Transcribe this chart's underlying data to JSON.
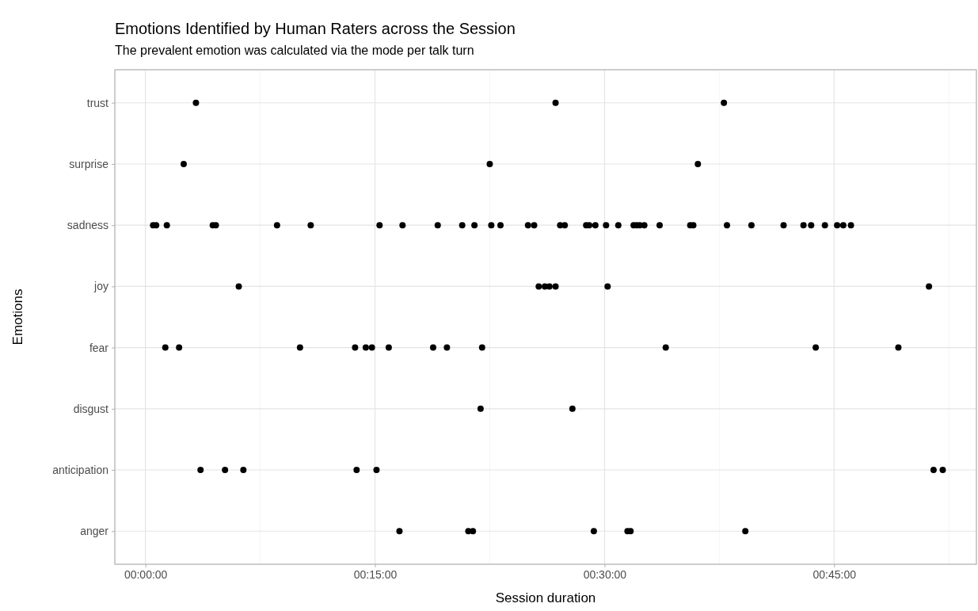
{
  "chart_data": {
    "type": "scatter",
    "title": "Emotions Identified by Human Raters across the Session",
    "subtitle": "The prevalent emotion was calculated via the mode per talk turn",
    "xlabel": "Session duration",
    "ylabel": "Emotions",
    "orientation": "horizontal",
    "categories": [
      "trust",
      "surprise",
      "sadness",
      "joy",
      "fear",
      "disgust",
      "anticipation",
      "anger"
    ],
    "xlim": [
      -2.0,
      54.3
    ],
    "xticks": [
      {
        "value": 0,
        "label": "00:00:00"
      },
      {
        "value": 7.5,
        "label": null
      },
      {
        "value": 15,
        "label": "00:15:00"
      },
      {
        "value": 22.5,
        "label": null
      },
      {
        "value": 30,
        "label": "00:30:00"
      },
      {
        "value": 37.5,
        "label": null
      },
      {
        "value": 45,
        "label": "00:45:00"
      },
      {
        "value": 52.5,
        "label": null
      }
    ],
    "grid": true,
    "marker": "circle",
    "series": [
      {
        "color": "#000000",
        "values": [
          3.3,
          2.5,
          0.5,
          6.1,
          1.3,
          21.9,
          3.6,
          16.6
        ]
      },
      {
        "color": "#000000",
        "values": [
          26.8,
          22.5,
          0.7,
          25.7,
          2.2,
          27.9,
          5.2,
          21.1
        ]
      },
      {
        "color": "#000000",
        "values": [
          37.8,
          36.1,
          1.4,
          26.1,
          10.1,
          null,
          6.4,
          21.4
        ]
      },
      {
        "color": "#000000",
        "values": [
          null,
          null,
          4.4,
          26.4,
          13.7,
          null,
          13.8,
          29.3
        ]
      },
      {
        "color": "#000000",
        "values": [
          null,
          null,
          4.6,
          26.8,
          14.4,
          null,
          15.1,
          31.5
        ]
      },
      {
        "color": "#000000",
        "values": [
          null,
          null,
          8.6,
          30.2,
          14.8,
          null,
          51.5,
          31.7
        ]
      },
      {
        "color": "#000000",
        "values": [
          null,
          null,
          10.8,
          51.2,
          15.9,
          null,
          52.1,
          39.2
        ]
      },
      {
        "color": "#000000",
        "values": [
          null,
          null,
          15.3,
          null,
          18.8,
          null,
          null,
          null
        ]
      },
      {
        "color": "#000000",
        "values": [
          null,
          null,
          16.8,
          null,
          19.7,
          null,
          null,
          null
        ]
      },
      {
        "color": "#000000",
        "values": [
          null,
          null,
          19.1,
          null,
          22.0,
          null,
          null,
          null
        ]
      },
      {
        "color": "#000000",
        "values": [
          null,
          null,
          20.7,
          null,
          34.0,
          null,
          null,
          null
        ]
      },
      {
        "color": "#000000",
        "values": [
          null,
          null,
          21.5,
          null,
          43.8,
          null,
          null,
          null
        ]
      },
      {
        "color": "#000000",
        "values": [
          null,
          null,
          22.6,
          null,
          49.2,
          null,
          null,
          null
        ]
      },
      {
        "color": "#000000",
        "values": [
          null,
          null,
          23.2,
          null,
          null,
          null,
          null,
          null
        ]
      },
      {
        "color": "#000000",
        "values": [
          null,
          null,
          25.0,
          null,
          null,
          null,
          null,
          null
        ]
      },
      {
        "color": "#000000",
        "values": [
          null,
          null,
          25.4,
          null,
          null,
          null,
          null,
          null
        ]
      },
      {
        "color": "#000000",
        "values": [
          null,
          null,
          27.1,
          null,
          null,
          null,
          null,
          null
        ]
      },
      {
        "color": "#000000",
        "values": [
          null,
          null,
          27.4,
          null,
          null,
          null,
          null,
          null
        ]
      },
      {
        "color": "#000000",
        "values": [
          null,
          null,
          28.8,
          null,
          null,
          null,
          null,
          null
        ]
      },
      {
        "color": "#000000",
        "values": [
          null,
          null,
          29.0,
          null,
          null,
          null,
          null,
          null
        ]
      },
      {
        "color": "#000000",
        "values": [
          null,
          null,
          29.4,
          null,
          null,
          null,
          null,
          null
        ]
      },
      {
        "color": "#000000",
        "values": [
          null,
          null,
          30.1,
          null,
          null,
          null,
          null,
          null
        ]
      },
      {
        "color": "#000000",
        "values": [
          null,
          null,
          30.9,
          null,
          null,
          null,
          null,
          null
        ]
      },
      {
        "color": "#000000",
        "values": [
          null,
          null,
          31.9,
          null,
          null,
          null,
          null,
          null
        ]
      },
      {
        "color": "#000000",
        "values": [
          null,
          null,
          32.1,
          null,
          null,
          null,
          null,
          null
        ]
      },
      {
        "color": "#000000",
        "values": [
          null,
          null,
          32.3,
          null,
          null,
          null,
          null,
          null
        ]
      },
      {
        "color": "#000000",
        "values": [
          null,
          null,
          32.6,
          null,
          null,
          null,
          null,
          null
        ]
      },
      {
        "color": "#000000",
        "values": [
          null,
          null,
          33.6,
          null,
          null,
          null,
          null,
          null
        ]
      },
      {
        "color": "#000000",
        "values": [
          null,
          null,
          35.6,
          null,
          null,
          null,
          null,
          null
        ]
      },
      {
        "color": "#000000",
        "values": [
          null,
          null,
          35.8,
          null,
          null,
          null,
          null,
          null
        ]
      },
      {
        "color": "#000000",
        "values": [
          null,
          null,
          38.0,
          null,
          null,
          null,
          null,
          null
        ]
      },
      {
        "color": "#000000",
        "values": [
          null,
          null,
          39.6,
          null,
          null,
          null,
          null,
          null
        ]
      },
      {
        "color": "#000000",
        "values": [
          null,
          null,
          41.7,
          null,
          null,
          null,
          null,
          null
        ]
      },
      {
        "color": "#000000",
        "values": [
          null,
          null,
          43.0,
          null,
          null,
          null,
          null,
          null
        ]
      },
      {
        "color": "#000000",
        "values": [
          null,
          null,
          43.5,
          null,
          null,
          null,
          null,
          null
        ]
      },
      {
        "color": "#000000",
        "values": [
          null,
          null,
          44.4,
          null,
          null,
          null,
          null,
          null
        ]
      },
      {
        "color": "#000000",
        "values": [
          null,
          null,
          45.2,
          null,
          null,
          null,
          null,
          null
        ]
      },
      {
        "color": "#000000",
        "values": [
          null,
          null,
          45.6,
          null,
          null,
          null,
          null,
          null
        ]
      },
      {
        "color": "#000000",
        "values": [
          null,
          null,
          46.1,
          null,
          null,
          null,
          null,
          null
        ]
      }
    ]
  }
}
